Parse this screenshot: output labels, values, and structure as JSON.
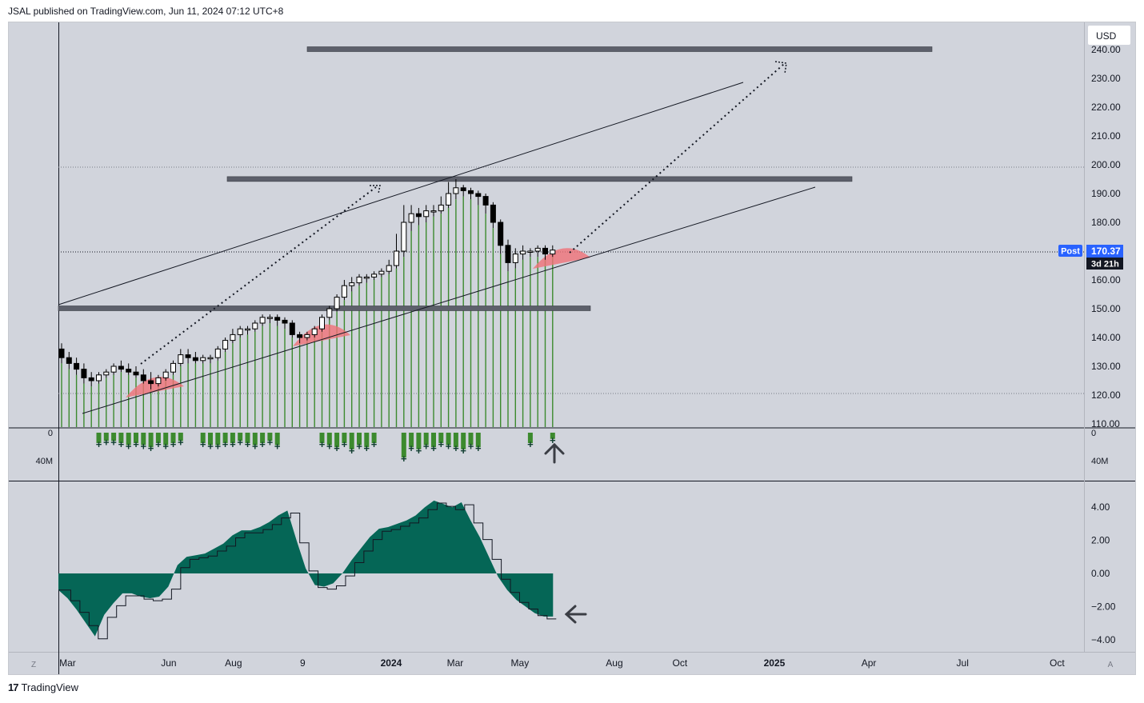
{
  "header": {
    "publisher_text": "JSAL published on TradingView.com, Jun 11, 2024 07:12 UTC+8"
  },
  "footer": {
    "brand_text": "TradingView",
    "brand_icon": "tradingview-logo-icon"
  },
  "currency_button": "USD",
  "price_axis": {
    "labels": [
      "240.00",
      "230.00",
      "220.00",
      "210.00",
      "200.00",
      "190.00",
      "180.00",
      "170.00",
      "160.00",
      "150.00",
      "140.00",
      "130.00",
      "120.00",
      "110.00"
    ],
    "post_badge": "Post",
    "last_price": "170.37",
    "countdown": "3d 21h"
  },
  "volume_axis": {
    "right_labels": [
      "0",
      "40M"
    ],
    "left_labels": [
      "0",
      "40M"
    ]
  },
  "oscillator_axis": {
    "labels": [
      "4.00",
      "2.00",
      "0.00",
      "−2.00",
      "−4.00"
    ]
  },
  "time_axis": {
    "labels": [
      "Mar",
      "Jun",
      "Aug",
      "9",
      "2024",
      "Mar",
      "May",
      "Aug",
      "Oct",
      "2025",
      "Apr",
      "Jul",
      "Oct"
    ],
    "bold_labels": [
      "2024",
      "2025"
    ],
    "left_corner": "Z",
    "right_corner": "A"
  },
  "colors": {
    "panel_bg": "#d1d4dc",
    "volume_bar": "#3c8a2e",
    "oscillator_fill": "#056656",
    "zone_bar": "#5d606b",
    "highlight_arc": "#f07178",
    "post_badge_bg": "#2962ff",
    "price_badge_bg": "#131722"
  },
  "chart_data": [
    {
      "type": "candlestick",
      "x": [
        "2023-02-27",
        "2023-03-06",
        "2023-03-13",
        "2023-03-20",
        "2023-03-27",
        "2023-04-03",
        "2023-04-10",
        "2023-04-17",
        "2023-04-24",
        "2023-05-01",
        "2023-05-08",
        "2023-05-15",
        "2023-05-22",
        "2023-05-29",
        "2023-06-05",
        "2023-06-12",
        "2023-06-19",
        "2023-06-26",
        "2023-07-03",
        "2023-07-10",
        "2023-07-17",
        "2023-07-24",
        "2023-07-31",
        "2023-08-07",
        "2023-08-14",
        "2023-08-21",
        "2023-08-28",
        "2023-09-04",
        "2023-09-11",
        "2023-09-18",
        "2023-09-25",
        "2023-10-02",
        "2023-10-09",
        "2023-10-16",
        "2023-10-23",
        "2023-10-30",
        "2023-11-06",
        "2023-11-13",
        "2023-11-20",
        "2023-11-27",
        "2023-12-04",
        "2023-12-11",
        "2023-12-18",
        "2023-12-25",
        "2024-01-01",
        "2024-01-08",
        "2024-01-15",
        "2024-01-22",
        "2024-01-29",
        "2024-02-05",
        "2024-02-12",
        "2024-02-19",
        "2024-02-26",
        "2024-03-04",
        "2024-03-11",
        "2024-03-18",
        "2024-03-25",
        "2024-04-01",
        "2024-04-08",
        "2024-04-15",
        "2024-04-22",
        "2024-04-29",
        "2024-05-06",
        "2024-05-13",
        "2024-05-20",
        "2024-05-27",
        "2024-06-03"
      ],
      "open": [
        136,
        133,
        131,
        129,
        126,
        125,
        127,
        128,
        130,
        129,
        128,
        127,
        125,
        124,
        126,
        128,
        131,
        134,
        133,
        132,
        133,
        133,
        136,
        139,
        141,
        143,
        143,
        145,
        147,
        147,
        146,
        145,
        141,
        140,
        141,
        143,
        147,
        150,
        154,
        158,
        159,
        161,
        161,
        162,
        163,
        165,
        170,
        180,
        183,
        182,
        184,
        184,
        186,
        190,
        192,
        191,
        190,
        189,
        186,
        180,
        172,
        166,
        169,
        170,
        170,
        171,
        169
      ],
      "close": [
        133,
        131,
        129,
        126,
        125,
        127,
        128,
        130,
        129,
        128,
        127,
        125,
        124,
        126,
        128,
        131,
        134,
        133,
        132,
        133,
        133,
        136,
        139,
        141,
        143,
        143,
        145,
        147,
        147,
        146,
        145,
        141,
        140,
        141,
        143,
        147,
        150,
        154,
        158,
        159,
        161,
        161,
        162,
        163,
        165,
        170,
        180,
        183,
        182,
        184,
        184,
        186,
        190,
        192,
        191,
        190,
        189,
        186,
        180,
        172,
        166,
        169,
        170,
        170,
        171,
        169,
        170.37
      ],
      "high": [
        138,
        135,
        133,
        131,
        128,
        128,
        129,
        131,
        132,
        131,
        130,
        129,
        128,
        127,
        129,
        132,
        136,
        136,
        135,
        134,
        134,
        137,
        140,
        143,
        144,
        144,
        146,
        148,
        148,
        148,
        147,
        146,
        142,
        142,
        144,
        148,
        151,
        155,
        160,
        161,
        162,
        162,
        163,
        164,
        167,
        176,
        186,
        186,
        185,
        186,
        186,
        189,
        194,
        195,
        193,
        192,
        191,
        190,
        187,
        181,
        174,
        171,
        172,
        171,
        172,
        172,
        172
      ],
      "low": [
        131,
        129,
        127,
        124,
        123,
        124,
        126,
        127,
        128,
        127,
        126,
        124,
        122,
        123,
        125,
        127,
        130,
        131,
        131,
        131,
        131,
        132,
        135,
        138,
        140,
        141,
        142,
        144,
        145,
        144,
        143,
        140,
        138,
        139,
        140,
        142,
        146,
        149,
        153,
        156,
        158,
        159,
        160,
        161,
        162,
        164,
        168,
        177,
        179,
        180,
        182,
        183,
        185,
        188,
        189,
        188,
        186,
        183,
        178,
        169,
        163,
        164,
        167,
        168,
        168,
        167,
        168
      ]
    },
    {
      "type": "bar",
      "series": [
        {
          "name": "Volume",
          "values": [
            6,
            5,
            7,
            6,
            8,
            5,
            4,
            4,
            5,
            6,
            5,
            6,
            7,
            5,
            6,
            5,
            4,
            7,
            6,
            5,
            6,
            6,
            5,
            5,
            4,
            5,
            6,
            5,
            4,
            6,
            5,
            4,
            5,
            6,
            7,
            5,
            6,
            7,
            5,
            8,
            6,
            7,
            5,
            6,
            5,
            8,
            12,
            7,
            8,
            6,
            7,
            5,
            6,
            7,
            8,
            6,
            7,
            5,
            4,
            6,
            5,
            8,
            7,
            5,
            6,
            5,
            3
          ]
        }
      ],
      "ylim": [
        0,
        40
      ]
    },
    {
      "type": "area",
      "series": [
        {
          "name": "Oscillator",
          "values": [
            -1.0,
            -1.5,
            -2.2,
            -3.0,
            -3.8,
            -2.5,
            -1.8,
            -1.2,
            -1.2,
            -1.4,
            -1.5,
            -1.4,
            -0.8,
            0.5,
            1.0,
            1.1,
            1.2,
            1.5,
            1.8,
            2.3,
            2.6,
            2.6,
            2.8,
            3.1,
            3.5,
            3.8,
            2.0,
            0.3,
            -0.7,
            -0.8,
            -0.6,
            0.0,
            0.8,
            1.5,
            2.2,
            2.7,
            2.8,
            3.0,
            3.2,
            3.5,
            4.0,
            4.4,
            4.2,
            4.0,
            4.3,
            3.2,
            2.2,
            1.0,
            -0.2,
            -1.0,
            -1.6,
            -2.0,
            -2.4,
            -2.6,
            -2.6
          ]
        }
      ],
      "ylim": [
        -4.5,
        4.5
      ]
    }
  ]
}
